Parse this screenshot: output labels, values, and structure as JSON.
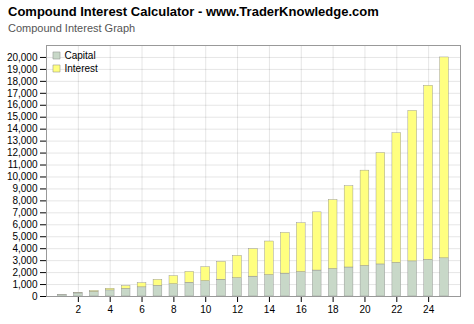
{
  "chart_data": {
    "type": "bar",
    "title": "Compound Interest Calculator - www.TraderKnowledge.com",
    "subtitle": "Compound Interest Graph",
    "stacked": true,
    "x": [
      1,
      2,
      3,
      4,
      5,
      6,
      7,
      8,
      9,
      10,
      11,
      12,
      13,
      14,
      15,
      16,
      17,
      18,
      19,
      20,
      21,
      22,
      23,
      24,
      25
    ],
    "series": [
      {
        "name": "Capital",
        "color": "#c8d8c8",
        "values": [
          127.74,
          255.48,
          383.21,
          510.95,
          638.69,
          766.43,
          894.17,
          1021.9,
          1149.64,
          1277.38,
          1405.12,
          1532.86,
          1660.59,
          1788.33,
          1916.07,
          2043.81,
          2171.55,
          2299.28,
          2427.02,
          2554.76,
          2682.5,
          2810.23,
          2937.97,
          3065.71,
          3193.45
        ]
      },
      {
        "name": "Interest",
        "color": "#ffff80",
        "values": [
          7.27,
          31.65,
          75.33,
          140.75,
          230.67,
          348.19,
          496.82,
          680.5,
          903.67,
          1171.34,
          1489.17,
          1863.5,
          2301.51,
          2811.27,
          3401.88,
          4083.59,
          4867.96,
          5768.01,
          6798.41,
          7975.69,
          9318.47,
          10847.78,
          12587.22,
          14563.47,
          16806.55
        ]
      }
    ],
    "xlim": [
      0,
      26
    ],
    "ylim": [
      0,
      21000
    ],
    "xticks": [
      2,
      4,
      6,
      8,
      10,
      12,
      14,
      16,
      18,
      20,
      22,
      24
    ],
    "yticks": [
      0,
      {
        "value": 1000,
        "label": "1,000"
      },
      {
        "value": 2000,
        "label": "2,000"
      },
      {
        "value": 3000,
        "label": "3,000"
      },
      {
        "value": 4000,
        "label": "4,000"
      },
      {
        "value": 5000,
        "label": "5,000"
      },
      {
        "value": 6000,
        "label": "6,000"
      },
      {
        "value": 7000,
        "label": "7,000"
      },
      {
        "value": 8000,
        "label": "8,000"
      },
      {
        "value": 9000,
        "label": "9,000"
      },
      {
        "value": 10000,
        "label": "10,000"
      },
      {
        "value": 11000,
        "label": "11,000"
      },
      {
        "value": 12000,
        "label": "12,000"
      },
      {
        "value": 13000,
        "label": "13,000"
      },
      {
        "value": 14000,
        "label": "14,000"
      },
      {
        "value": 15000,
        "label": "15,000"
      },
      {
        "value": 16000,
        "label": "16,000"
      },
      {
        "value": 17000,
        "label": "17,000"
      },
      {
        "value": 18000,
        "label": "18,000"
      },
      {
        "value": 19000,
        "label": "19,000"
      },
      {
        "value": 20000,
        "label": "20,000"
      }
    ],
    "grid": true,
    "legend": "upper left"
  }
}
